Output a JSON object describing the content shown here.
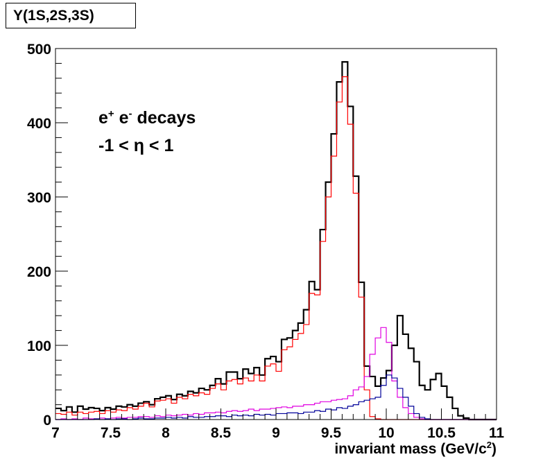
{
  "chart_data": {
    "type": "line",
    "title": "Υ(1S,2S,3S)",
    "title_upsilon": "Υ",
    "title_states": "(1S,2S,3S)",
    "xlabel_text": "invariant mass (GeV/c",
    "xlabel_sup": "2",
    "xlabel_close": ")",
    "annotation": {
      "line1_e": "e",
      "line1_plus": "+",
      "line1_e2": " e",
      "line1_minus": "-",
      "line1_rest": " decays",
      "line2": "-1 < η < 1"
    },
    "xlim": [
      7,
      11
    ],
    "ylim": [
      0,
      500
    ],
    "x_ticks": [
      "7",
      "7.5",
      "8",
      "8.5",
      "9",
      "9.5",
      "10",
      "10.5",
      "11"
    ],
    "y_ticks": [
      "0",
      "100",
      "200",
      "300",
      "400",
      "500"
    ],
    "bin_start": 7.0,
    "bin_width": 0.05,
    "series": [
      {
        "color": "#000000",
        "values": [
          15,
          12,
          17,
          10,
          18,
          14,
          16,
          15,
          12,
          16,
          14,
          18,
          17,
          20,
          18,
          22,
          24,
          20,
          28,
          30,
          32,
          27,
          34,
          32,
          38,
          36,
          42,
          40,
          46,
          55,
          48,
          64,
          64,
          55,
          68,
          62,
          70,
          60,
          82,
          85,
          78,
          108,
          110,
          120,
          130,
          148,
          186,
          175,
          256,
          320,
          385,
          455,
          482,
          422,
          328,
          185,
          72,
          58,
          45,
          56,
          66,
          100,
          140,
          115,
          96,
          78,
          46,
          40,
          54,
          62,
          45,
          30,
          15,
          5,
          2,
          0,
          0,
          0,
          0,
          0
        ],
        "stroke_width": 2.2
      },
      {
        "color": "#ff0000",
        "values": [
          8,
          7,
          10,
          6,
          10,
          8,
          10,
          11,
          8,
          12,
          10,
          13,
          12,
          16,
          14,
          18,
          22,
          17,
          25,
          26,
          28,
          22,
          30,
          28,
          34,
          32,
          36,
          34,
          42,
          48,
          40,
          52,
          54,
          48,
          56,
          52,
          60,
          52,
          72,
          75,
          65,
          94,
          98,
          108,
          116,
          128,
          170,
          168,
          240,
          300,
          355,
          428,
          462,
          398,
          305,
          165,
          40,
          4,
          1,
          0,
          0,
          0,
          0,
          0,
          0,
          0,
          0,
          0,
          0,
          0,
          0,
          0,
          0,
          0,
          0,
          0,
          0,
          0,
          0,
          0
        ],
        "stroke_width": 1.2
      },
      {
        "color": "#e000e0",
        "values": [
          0,
          1,
          0,
          1,
          0,
          2,
          1,
          1,
          2,
          1,
          2,
          3,
          2,
          3,
          3,
          4,
          4,
          3,
          5,
          4,
          6,
          5,
          6,
          7,
          6,
          8,
          7,
          9,
          9,
          10,
          9,
          11,
          12,
          11,
          12,
          14,
          12,
          14,
          14,
          15,
          16,
          17,
          16,
          18,
          18,
          20,
          20,
          22,
          24,
          24,
          26,
          27,
          28,
          32,
          40,
          44,
          58,
          88,
          110,
          124,
          104,
          52,
          30,
          16,
          8,
          3,
          1,
          0,
          0,
          0,
          0,
          0,
          0,
          0,
          0,
          0,
          0,
          0,
          0,
          0
        ],
        "stroke_width": 1.2
      },
      {
        "color": "#000099",
        "values": [
          0,
          0,
          0,
          0,
          0,
          0,
          0,
          1,
          0,
          1,
          0,
          1,
          1,
          0,
          1,
          2,
          1,
          1,
          2,
          2,
          3,
          2,
          3,
          2,
          4,
          3,
          3,
          4,
          4,
          5,
          5,
          4,
          6,
          5,
          6,
          5,
          7,
          6,
          7,
          6,
          8,
          8,
          9,
          9,
          8,
          10,
          10,
          12,
          11,
          14,
          13,
          16,
          15,
          18,
          20,
          24,
          26,
          28,
          30,
          46,
          60,
          56,
          42,
          30,
          18,
          8,
          3,
          1,
          0,
          0,
          0,
          0,
          0,
          0,
          0,
          0,
          0,
          0,
          0,
          0
        ],
        "stroke_width": 1.2
      }
    ]
  }
}
